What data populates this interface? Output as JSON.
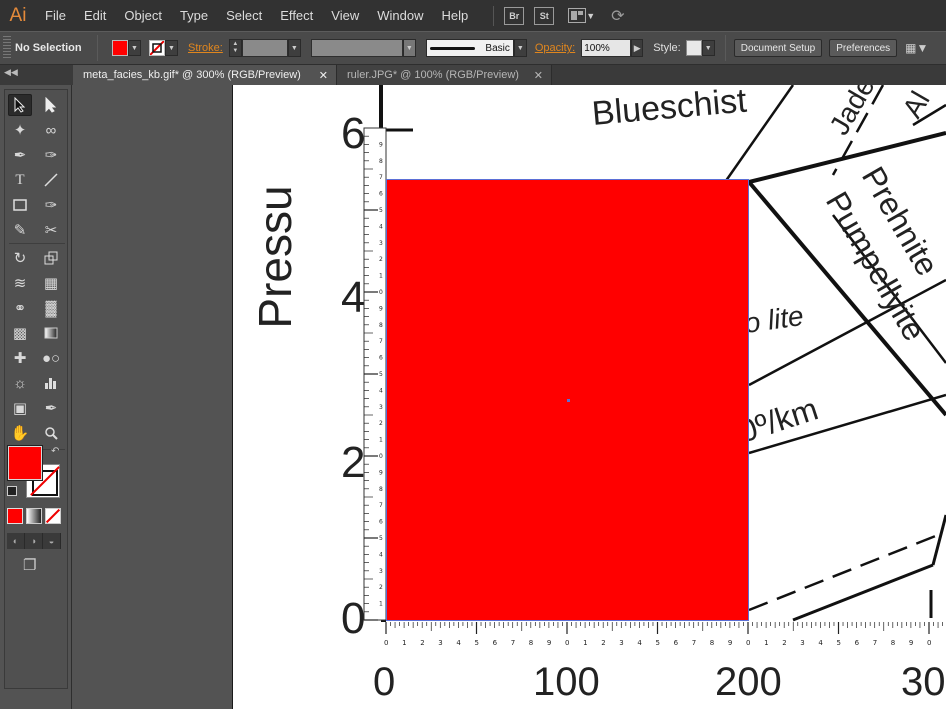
{
  "app": {
    "logo": "Ai"
  },
  "menu": {
    "items": [
      "File",
      "Edit",
      "Object",
      "Type",
      "Select",
      "Effect",
      "View",
      "Window",
      "Help"
    ],
    "bridge_label": "Br",
    "stock_label": "St"
  },
  "control_bar": {
    "selection_status": "No Selection",
    "fill_color": "#ff0000",
    "stroke_label": "Stroke:",
    "brush_label": "Basic",
    "opacity_label": "Opacity:",
    "opacity_value": "100%",
    "style_label": "Style:",
    "document_setup_label": "Document Setup",
    "preferences_label": "Preferences"
  },
  "tabs": [
    {
      "label": "meta_facies_kb.gif* @ 300% (RGB/Preview)",
      "active": true
    },
    {
      "label": "ruler.JPG* @ 100% (RGB/Preview)",
      "active": false
    }
  ],
  "tools": {
    "fill_color": "#ff0000",
    "icons": [
      "selection-icon",
      "direct-selection-icon",
      "magic-wand-icon",
      "lasso-icon",
      "pen-icon",
      "curvature-icon",
      "type-icon",
      "line-segment-icon",
      "rectangle-icon",
      "paintbrush-icon",
      "pencil-icon",
      "scissors-icon",
      "rotate-icon",
      "scale-icon",
      "width-icon",
      "free-transform-icon",
      "shape-builder-icon",
      "perspective-grid-icon",
      "mesh-icon",
      "gradient-icon",
      "eyedropper-icon",
      "blend-icon",
      "symbol-sprayer-icon",
      "column-graph-icon",
      "artboard-icon",
      "slice-icon",
      "hand-icon",
      "zoom-icon"
    ]
  },
  "artwork": {
    "rect_fill": "#ff0000",
    "diagram_labels": {
      "axis_label": "Pressu",
      "blueschist": "Blueschist",
      "jade": "Jade",
      "al": "Al",
      "prehnite": "Prehnite",
      "pumpellyite": "Pumpellyite",
      "olite": "o lite",
      "gradient": "0º/km"
    },
    "pressure_ticks": [
      "6",
      "4",
      "2",
      "0"
    ],
    "temperature_ticks": [
      "0",
      "100",
      "200",
      "30"
    ],
    "ruler_digits": [
      "0",
      "1",
      "2",
      "3",
      "4",
      "5",
      "6",
      "7",
      "8",
      "9"
    ]
  }
}
